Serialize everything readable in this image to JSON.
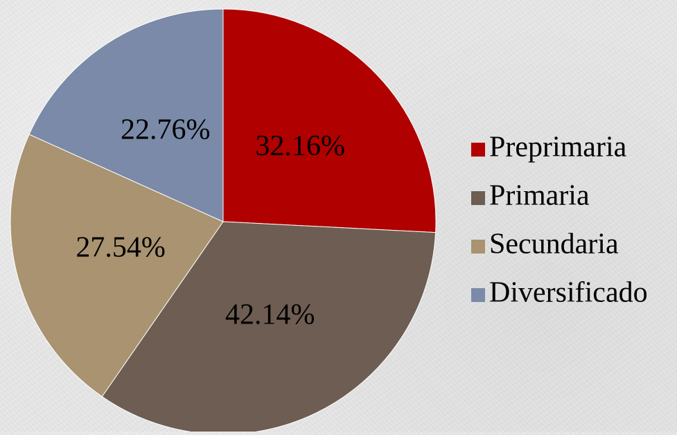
{
  "chart_data": {
    "type": "pie",
    "title": "",
    "legend_position": "right",
    "slices": [
      {
        "label": "Preprimaria",
        "value": 32.16,
        "display": "32.16%",
        "color": "#b00000"
      },
      {
        "label": "Primaria",
        "value": 42.14,
        "display": "42.14%",
        "color": "#6e5d52"
      },
      {
        "label": "Secundaria",
        "value": 27.54,
        "display": "27.54%",
        "color": "#a99370"
      },
      {
        "label": "Diversificado",
        "value": 22.76,
        "display": "22.76%",
        "color": "#7a8aa8"
      }
    ]
  }
}
